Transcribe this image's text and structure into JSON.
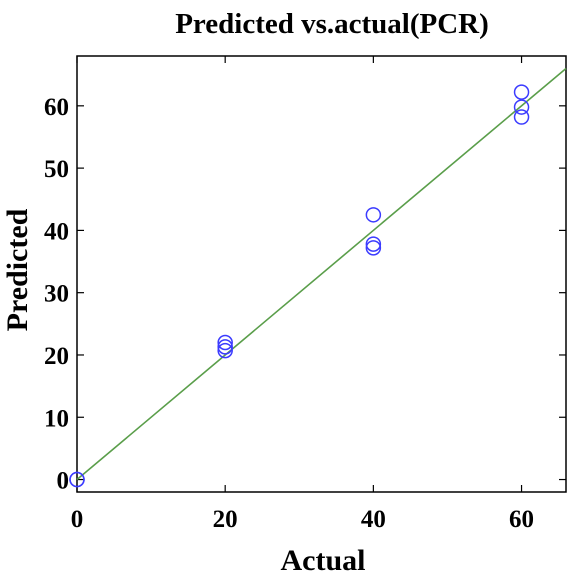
{
  "chart_data": {
    "type": "scatter",
    "title": "Predicted vs.actual(PCR)",
    "xlabel": "Actual",
    "ylabel": "Predicted",
    "xlim": [
      0,
      66
    ],
    "ylim": [
      -2,
      68
    ],
    "x_ticks": [
      "0",
      "20",
      "40",
      "60"
    ],
    "y_ticks": [
      "0",
      "10",
      "20",
      "30",
      "40",
      "50",
      "60"
    ],
    "grid": false,
    "legend": "none",
    "series": [
      {
        "marker": "circle",
        "color": "#3b3bff",
        "points": [
          {
            "x": 0,
            "y": 0
          },
          {
            "x": 0,
            "y": 0
          },
          {
            "x": 20,
            "y": 22
          },
          {
            "x": 20,
            "y": 21.3
          },
          {
            "x": 20,
            "y": 20.7
          },
          {
            "x": 40,
            "y": 42.5
          },
          {
            "x": 40,
            "y": 37.8
          },
          {
            "x": 40,
            "y": 37.2
          },
          {
            "x": 60,
            "y": 62.2
          },
          {
            "x": 60,
            "y": 59.8
          },
          {
            "x": 60,
            "y": 58.2
          }
        ]
      }
    ],
    "fit_line": {
      "color": "#5a9e4a",
      "from": {
        "x": 0,
        "y": 0
      },
      "to": {
        "x": 66,
        "y": 66
      }
    }
  }
}
